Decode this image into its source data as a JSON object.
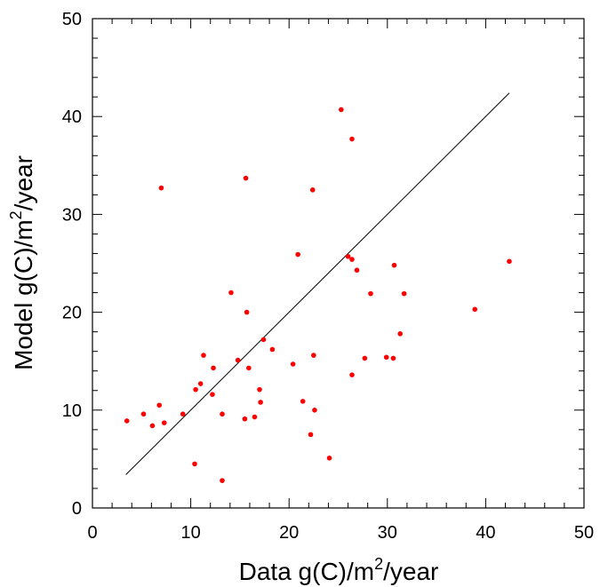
{
  "chart_data": {
    "type": "scatter",
    "title": "",
    "xlabel": {
      "prefix": "Data g(C)/m",
      "sup": "2",
      "suffix": "/year"
    },
    "ylabel": {
      "prefix": "Model g(C)/m",
      "sup": "2",
      "suffix": "/year"
    },
    "xlim": [
      0,
      50
    ],
    "ylim": [
      0,
      50
    ],
    "x_ticks": [
      "0",
      "10",
      "20",
      "30",
      "40",
      "50"
    ],
    "y_ticks": [
      "0",
      "10",
      "20",
      "30",
      "40",
      "50"
    ],
    "grid": false,
    "point_color": "#ff0000",
    "line_color": "#000000",
    "reference_line": {
      "x": [
        3.4,
        42.4
      ],
      "y": [
        3.4,
        42.4
      ]
    },
    "points": [
      {
        "x": 3.5,
        "y": 8.9
      },
      {
        "x": 5.2,
        "y": 9.6
      },
      {
        "x": 6.1,
        "y": 8.4
      },
      {
        "x": 6.8,
        "y": 10.5
      },
      {
        "x": 7.0,
        "y": 32.7
      },
      {
        "x": 7.3,
        "y": 8.7
      },
      {
        "x": 9.2,
        "y": 9.6
      },
      {
        "x": 10.4,
        "y": 4.5
      },
      {
        "x": 10.5,
        "y": 12.1
      },
      {
        "x": 11.0,
        "y": 12.7
      },
      {
        "x": 11.3,
        "y": 15.6
      },
      {
        "x": 12.2,
        "y": 11.6
      },
      {
        "x": 12.3,
        "y": 14.3
      },
      {
        "x": 13.2,
        "y": 9.6
      },
      {
        "x": 13.2,
        "y": 2.8
      },
      {
        "x": 14.1,
        "y": 22.0
      },
      {
        "x": 14.8,
        "y": 15.1
      },
      {
        "x": 15.5,
        "y": 9.1
      },
      {
        "x": 15.6,
        "y": 33.7
      },
      {
        "x": 15.7,
        "y": 20.0
      },
      {
        "x": 15.9,
        "y": 14.3
      },
      {
        "x": 16.5,
        "y": 9.3
      },
      {
        "x": 17.0,
        "y": 12.1
      },
      {
        "x": 17.1,
        "y": 10.8
      },
      {
        "x": 17.4,
        "y": 17.2
      },
      {
        "x": 18.3,
        "y": 16.2
      },
      {
        "x": 20.4,
        "y": 14.7
      },
      {
        "x": 20.9,
        "y": 25.9
      },
      {
        "x": 21.4,
        "y": 10.9
      },
      {
        "x": 22.2,
        "y": 7.5
      },
      {
        "x": 22.4,
        "y": 32.5
      },
      {
        "x": 22.5,
        "y": 15.6
      },
      {
        "x": 22.6,
        "y": 10.0
      },
      {
        "x": 24.1,
        "y": 5.1
      },
      {
        "x": 25.3,
        "y": 40.7
      },
      {
        "x": 26.0,
        "y": 25.7
      },
      {
        "x": 26.4,
        "y": 25.4
      },
      {
        "x": 26.4,
        "y": 37.7
      },
      {
        "x": 26.4,
        "y": 13.6
      },
      {
        "x": 26.9,
        "y": 24.3
      },
      {
        "x": 27.7,
        "y": 15.3
      },
      {
        "x": 28.3,
        "y": 21.9
      },
      {
        "x": 29.9,
        "y": 15.4
      },
      {
        "x": 30.6,
        "y": 15.3
      },
      {
        "x": 30.7,
        "y": 24.8
      },
      {
        "x": 31.3,
        "y": 17.8
      },
      {
        "x": 31.7,
        "y": 21.9
      },
      {
        "x": 38.9,
        "y": 20.3
      },
      {
        "x": 42.4,
        "y": 25.2
      }
    ]
  }
}
